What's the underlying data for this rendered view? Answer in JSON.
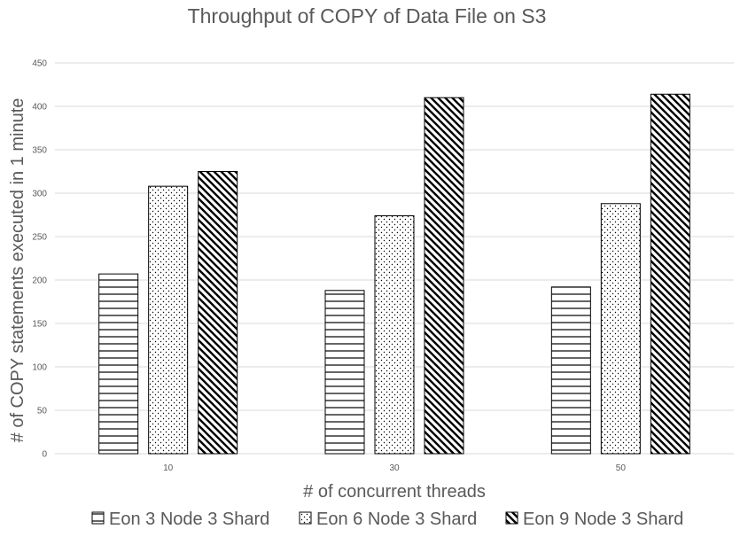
{
  "chart_data": {
    "type": "bar",
    "title": "Throughput of COPY of Data File on S3",
    "xlabel": "# of concurrent threads",
    "ylabel": "# of COPY statements executed in 1 minute",
    "categories": [
      "10",
      "30",
      "50"
    ],
    "ylim": [
      0,
      450
    ],
    "yticks": [
      0,
      50,
      100,
      150,
      200,
      250,
      300,
      350,
      400,
      450
    ],
    "grid": true,
    "legend_position": "bottom",
    "series": [
      {
        "name": "Eon 3 Node 3 Shard",
        "pattern": "horizontal-lines",
        "values": [
          207,
          188,
          192
        ]
      },
      {
        "name": "Eon 6 Node 3 Shard",
        "pattern": "dots",
        "values": [
          308,
          274,
          288
        ]
      },
      {
        "name": "Eon 9 Node 3 Shard",
        "pattern": "diagonal-lines",
        "values": [
          325,
          410,
          414
        ]
      }
    ]
  }
}
